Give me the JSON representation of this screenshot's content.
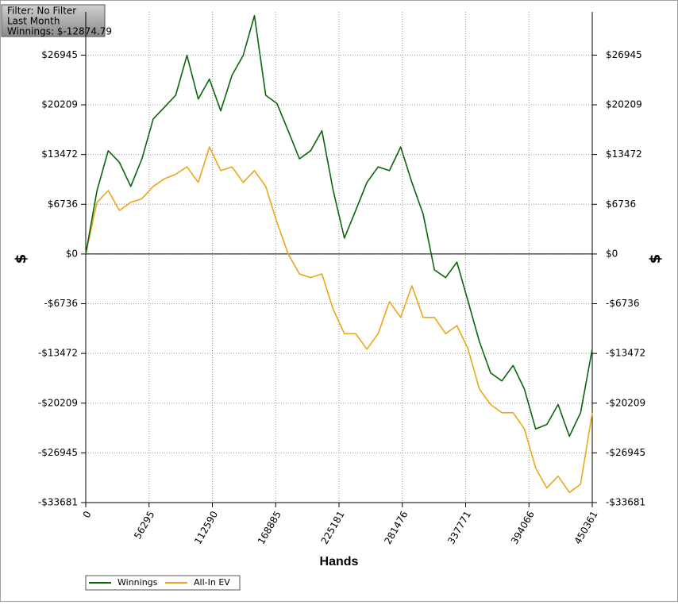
{
  "chart_data": {
    "type": "line",
    "annotations": [
      "Filter: No Filter",
      "Last Month",
      "Winnings: $-12874.79"
    ],
    "x_label": "Hands",
    "y_label": "$",
    "y2_label": "$",
    "x": [
      0,
      10000,
      20000,
      30000,
      40000,
      50000,
      60000,
      70000,
      80000,
      90000,
      100000,
      110000,
      120000,
      130000,
      140000,
      150000,
      160000,
      170000,
      180000,
      190000,
      200000,
      210000,
      220000,
      230000,
      240000,
      250000,
      260000,
      270000,
      280000,
      290000,
      300000,
      310000,
      320000,
      330000,
      340000,
      350000,
      360000,
      370000,
      380000,
      390000,
      400000,
      410000,
      420000,
      430000,
      440000,
      450361
    ],
    "series": [
      {
        "name": "Winnings",
        "color": "#0b650b",
        "values": [
          0,
          8600,
          14000,
          12400,
          9150,
          12900,
          18300,
          19900,
          21500,
          26900,
          21000,
          23700,
          19400,
          24200,
          26900,
          32300,
          21500,
          20400,
          16700,
          12900,
          14000,
          16700,
          8600,
          2150,
          5900,
          9700,
          11800,
          11300,
          14500,
          9700,
          5400,
          -2150,
          -3200,
          -1100,
          -6450,
          -11850,
          -16100,
          -17200,
          -15100,
          -18300,
          -23700,
          -23100,
          -20400,
          -24700,
          -21500,
          -12875
        ]
      },
      {
        "name": "All-In EV",
        "color": "#eba61a",
        "values": [
          0,
          7000,
          8600,
          5900,
          7000,
          7500,
          9150,
          10200,
          10800,
          11800,
          9700,
          14500,
          11300,
          11800,
          9700,
          11300,
          9150,
          4300,
          0,
          -2700,
          -3200,
          -2700,
          -7500,
          -10800,
          -10800,
          -12900,
          -10800,
          -6450,
          -8600,
          -4300,
          -8600,
          -8600,
          -10800,
          -9700,
          -12900,
          -18300,
          -20400,
          -21500,
          -21500,
          -23700,
          -29000,
          -31700,
          -30100,
          -32300,
          -31200,
          -21500
        ]
      }
    ],
    "xlim": [
      0,
      450361
    ],
    "xticks": [
      0,
      56295,
      112590,
      168885,
      225181,
      281476,
      337771,
      394066,
      450361
    ],
    "ylim": [
      -33681,
      32800
    ],
    "yticks": [
      {
        "value": -33681,
        "label": "-$33681"
      },
      {
        "value": -26945,
        "label": "-$26945"
      },
      {
        "value": -20209,
        "label": "-$20209"
      },
      {
        "value": -13472,
        "label": "-$13472"
      },
      {
        "value": -6736,
        "label": "-$6736"
      },
      {
        "value": 0,
        "label": "$0"
      },
      {
        "value": 6736,
        "label": "$6736"
      },
      {
        "value": 13472,
        "label": "$13472"
      },
      {
        "value": 20209,
        "label": "$20209"
      },
      {
        "value": 26945,
        "label": "$26945"
      }
    ],
    "grid": true
  }
}
